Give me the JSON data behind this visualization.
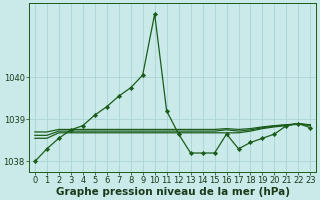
{
  "background_color": "#caeaea",
  "grid_color": "#aad4d4",
  "line_color": "#1a5c1a",
  "x": [
    0,
    1,
    2,
    3,
    4,
    5,
    6,
    7,
    8,
    9,
    10,
    11,
    12,
    13,
    14,
    15,
    16,
    17,
    18,
    19,
    20,
    21,
    22,
    23
  ],
  "y_main": [
    1038.0,
    1038.3,
    1038.55,
    1038.75,
    1038.85,
    1039.1,
    1039.3,
    1039.55,
    1039.75,
    1040.05,
    1041.5,
    1039.2,
    1038.65,
    1038.2,
    1038.2,
    1038.2,
    1038.65,
    1038.3,
    1038.45,
    1038.55,
    1038.65,
    1038.85,
    1038.9,
    1038.8
  ],
  "y_line2": [
    1038.55,
    1038.55,
    1038.68,
    1038.68,
    1038.68,
    1038.68,
    1038.68,
    1038.68,
    1038.68,
    1038.68,
    1038.68,
    1038.68,
    1038.68,
    1038.68,
    1038.68,
    1038.68,
    1038.68,
    1038.68,
    1038.72,
    1038.78,
    1038.82,
    1038.85,
    1038.9,
    1038.85
  ],
  "y_line3": [
    1038.62,
    1038.62,
    1038.72,
    1038.72,
    1038.72,
    1038.72,
    1038.72,
    1038.72,
    1038.72,
    1038.72,
    1038.72,
    1038.72,
    1038.72,
    1038.72,
    1038.72,
    1038.72,
    1038.75,
    1038.72,
    1038.75,
    1038.8,
    1038.84,
    1038.87,
    1038.88,
    1038.87
  ],
  "y_line4": [
    1038.7,
    1038.7,
    1038.76,
    1038.76,
    1038.76,
    1038.76,
    1038.76,
    1038.76,
    1038.76,
    1038.76,
    1038.76,
    1038.76,
    1038.76,
    1038.76,
    1038.76,
    1038.76,
    1038.78,
    1038.76,
    1038.78,
    1038.82,
    1038.85,
    1038.87,
    1038.9,
    1038.87
  ],
  "ylim": [
    1037.75,
    1041.75
  ],
  "yticks": [
    1038,
    1039,
    1040
  ],
  "xticks": [
    0,
    1,
    2,
    3,
    4,
    5,
    6,
    7,
    8,
    9,
    10,
    11,
    12,
    13,
    14,
    15,
    16,
    17,
    18,
    19,
    20,
    21,
    22,
    23
  ],
  "xlabel": "Graphe pression niveau de la mer (hPa)",
  "xlabel_fontsize": 7.5,
  "tick_fontsize": 6.0,
  "marker": "D",
  "markersize": 2.2,
  "linewidth": 0.9
}
